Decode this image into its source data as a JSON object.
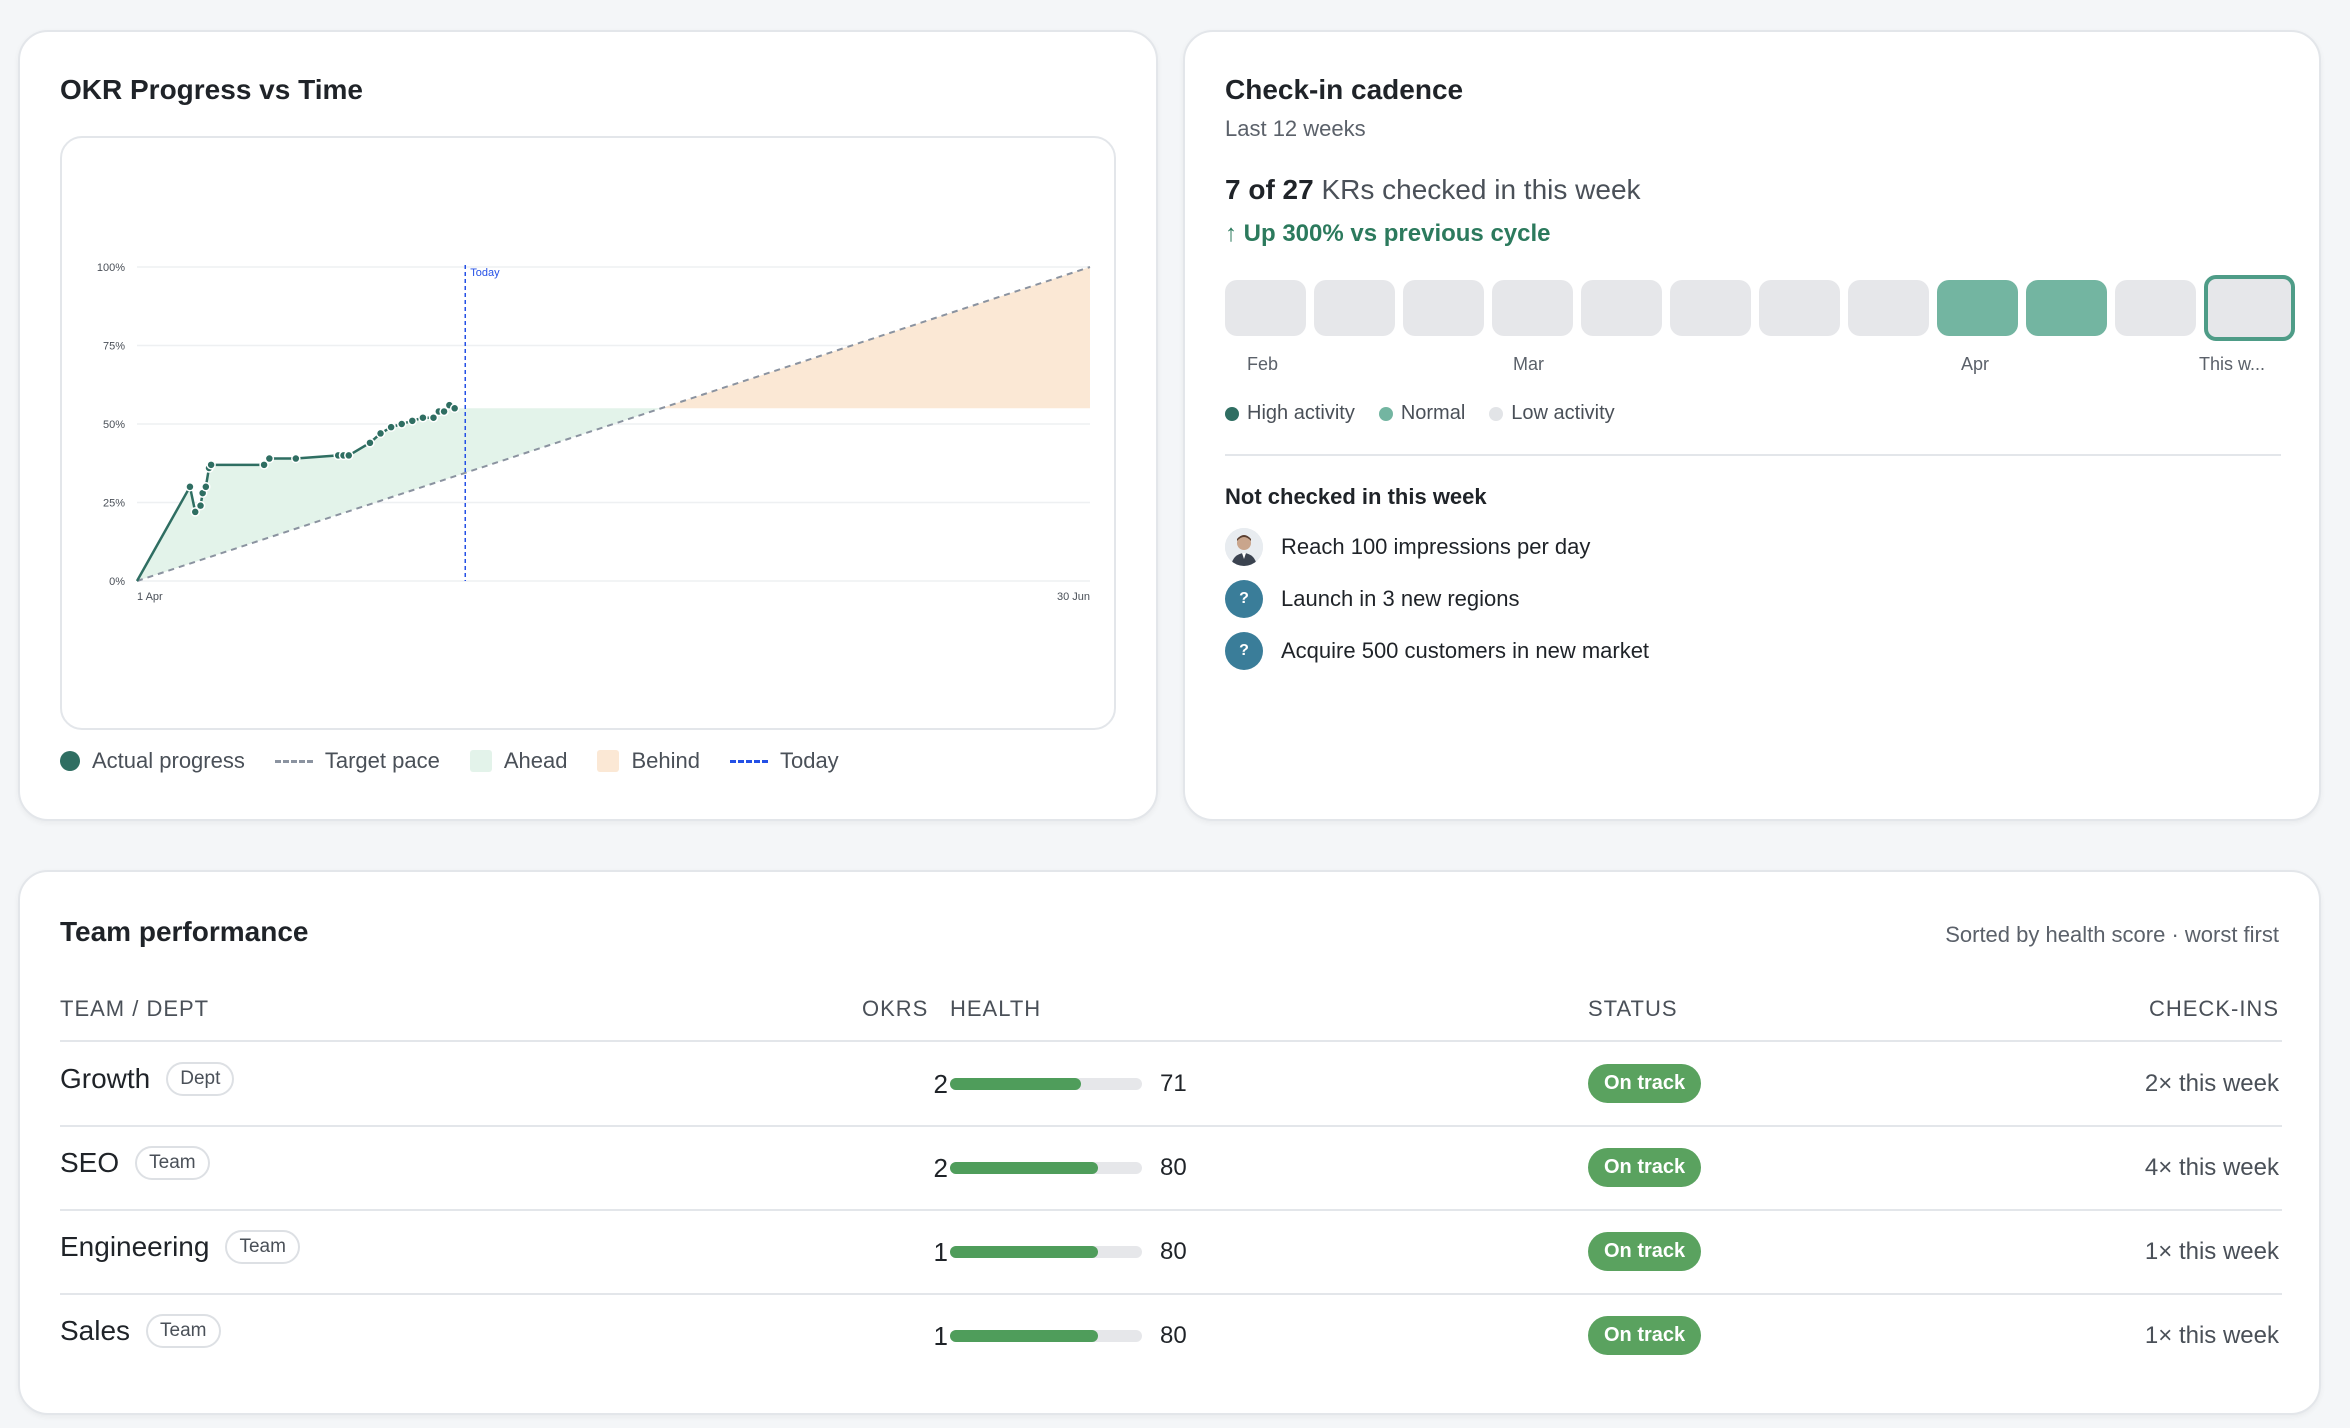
{
  "okr_card": {
    "title": "OKR Progress vs Time",
    "legend": [
      "Actual progress",
      "Target pace",
      "Ahead",
      "Behind",
      "Today"
    ],
    "colors": {
      "actual": "#2f6e62",
      "target": "#8b93a0",
      "ahead": "#e3f3ea",
      "behind": "#fbe8d5",
      "today": "#2450e6"
    }
  },
  "chart_data": {
    "type": "line",
    "title": "OKR Progress vs Time",
    "xlabel": "",
    "ylabel": "",
    "ylim": [
      0,
      100
    ],
    "y_ticks": [
      "100%",
      "75%",
      "50%",
      "25%",
      "0%"
    ],
    "x_ticks": [
      "1 Apr",
      "30 Jun"
    ],
    "today_label": "Today",
    "today_day": 31,
    "total_days": 90,
    "series": [
      {
        "name": "Actual progress",
        "x_days": [
          0,
          5,
          5.5,
          6,
          6.2,
          6.5,
          6.8,
          7,
          12,
          12.5,
          15,
          19,
          19.5,
          20,
          22,
          23,
          24,
          25,
          26,
          27,
          28,
          28.5,
          29,
          29.5,
          30
        ],
        "values": [
          0,
          30,
          22,
          24,
          28,
          30,
          36,
          37,
          37,
          39,
          39,
          40,
          40,
          40,
          44,
          47,
          49,
          50,
          51,
          52,
          52,
          54,
          54,
          56,
          55
        ]
      },
      {
        "name": "Target pace",
        "x_days": [
          0,
          90
        ],
        "values": [
          0,
          100
        ]
      }
    ],
    "ahead_region": {
      "level": 55,
      "from_day": 0,
      "to_day": 49.5
    },
    "behind_region": {
      "level": 55,
      "from_day": 49.5,
      "to_day": 90
    },
    "grid": true
  },
  "checkin_card": {
    "title": "Check-in cadence",
    "subtitle": "Last 12 weeks",
    "summary_bold": "7 of 27",
    "summary_rest": " KRs checked in this week",
    "trend": "↑ Up 300% vs previous cycle",
    "weeks": [
      "low",
      "low",
      "low",
      "low",
      "low",
      "low",
      "low",
      "low",
      "normal",
      "normal",
      "low",
      "current"
    ],
    "month_labels": [
      "Feb",
      "Mar",
      "Apr",
      "This w..."
    ],
    "legend": [
      "High activity",
      "Normal",
      "Low activity"
    ],
    "legend_colors": [
      "#2f6e62",
      "#73b5a1",
      "#e2e4e7"
    ],
    "section_title": "Not checked in this week",
    "krs": [
      {
        "label": "Reach 100 impressions per day",
        "avatar": "person"
      },
      {
        "label": "Launch in 3 new regions",
        "avatar": "?"
      },
      {
        "label": "Acquire 500 customers in new market",
        "avatar": "?"
      }
    ]
  },
  "team_card": {
    "title": "Team performance",
    "sort_note": "Sorted by health score · worst first",
    "columns": [
      "TEAM / DEPT",
      "OKRS",
      "HEALTH",
      "STATUS",
      "CHECK-INS"
    ],
    "rows": [
      {
        "name": "Growth",
        "type": "Dept",
        "okrs": "2",
        "health": 71,
        "health_label": "71",
        "status": "On track",
        "checkins": "2× this week"
      },
      {
        "name": "SEO",
        "type": "Team",
        "okrs": "2",
        "health": 80,
        "health_label": "80",
        "status": "On track",
        "checkins": "4× this week"
      },
      {
        "name": "Engineering",
        "type": "Team",
        "okrs": "1",
        "health": 80,
        "health_label": "80",
        "status": "On track",
        "checkins": "1× this week"
      },
      {
        "name": "Sales",
        "type": "Team",
        "okrs": "1",
        "health": 80,
        "health_label": "80",
        "status": "On track",
        "checkins": "1× this week"
      }
    ]
  }
}
